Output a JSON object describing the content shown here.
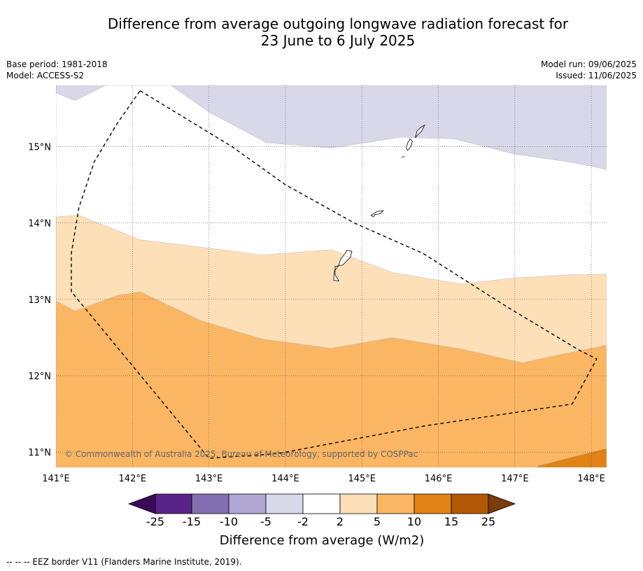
{
  "title_line1": "Difference from average outgoing longwave radiation forecast for",
  "title_line2": "23 June to 6 July 2025",
  "base_period": "Base period: 1981-2018",
  "model": "Model: ACCESS-S2",
  "model_run": "Model run: 09/06/2025",
  "issued": "Issued: 11/06/2025",
  "credit": "© Commonwealth of Australia 2025, Bureau of Meteorology, supported by COSPPac",
  "footnote": "--  --  -- EEZ border V11 (Flanders Marine Institute, 2019).",
  "chart_data": {
    "type": "heatmap",
    "title": "Difference from average outgoing longwave radiation forecast for 23 June to 6 July 2025",
    "xlim": [
      141.0,
      148.2
    ],
    "ylim": [
      10.8,
      15.8
    ],
    "grid": true,
    "x_ticks": [
      {
        "value": 141,
        "label": "141°E"
      },
      {
        "value": 142,
        "label": "142°E"
      },
      {
        "value": 143,
        "label": "143°E"
      },
      {
        "value": 144,
        "label": "144°E"
      },
      {
        "value": 145,
        "label": "145°E"
      },
      {
        "value": 146,
        "label": "146°E"
      },
      {
        "value": 147,
        "label": "147°E"
      },
      {
        "value": 148,
        "label": "148°E"
      }
    ],
    "y_ticks": [
      {
        "value": 11,
        "label": "11°N"
      },
      {
        "value": 12,
        "label": "12°N"
      },
      {
        "value": 13,
        "label": "13°N"
      },
      {
        "value": 14,
        "label": "14°N"
      },
      {
        "value": 15,
        "label": "15°N"
      }
    ],
    "colorbar": {
      "label": "Difference from average (W/m2)",
      "tick_labels": [
        "-25",
        "-15",
        "-10",
        "-5",
        "-2",
        "2",
        "5",
        "10",
        "15",
        "25"
      ],
      "under_color": "#3a0a5a",
      "over_color": "#7a3c0c",
      "colors": [
        "#5a2388",
        "#8270b2",
        "#b0a6d4",
        "#d8d8ea",
        "#ffffff",
        "#fde0b8",
        "#fbb663",
        "#e08214",
        "#b35806"
      ]
    },
    "regions": [
      {
        "category": "-5 to -2",
        "color": "#d8d8ea",
        "polygon": [
          [
            141.0,
            15.7
          ],
          [
            141.25,
            15.6
          ],
          [
            141.65,
            15.8
          ],
          [
            142.5,
            15.8
          ],
          [
            143.0,
            15.45
          ],
          [
            143.75,
            15.05
          ],
          [
            144.6,
            14.98
          ],
          [
            145.5,
            15.12
          ],
          [
            146.2,
            15.1
          ],
          [
            147.0,
            14.9
          ],
          [
            147.7,
            14.8
          ],
          [
            148.2,
            14.7
          ],
          [
            148.2,
            15.8
          ],
          [
            141.0,
            15.8
          ]
        ]
      },
      {
        "category": "2 to 5",
        "color": "#fde0b8",
        "polygon": [
          [
            141.0,
            14.08
          ],
          [
            141.3,
            14.1
          ],
          [
            142.1,
            13.78
          ],
          [
            143.0,
            13.67
          ],
          [
            143.7,
            13.58
          ],
          [
            144.6,
            13.65
          ],
          [
            145.4,
            13.35
          ],
          [
            146.3,
            13.2
          ],
          [
            147.0,
            13.28
          ],
          [
            147.7,
            13.32
          ],
          [
            148.2,
            13.33
          ],
          [
            148.2,
            10.8
          ],
          [
            141.0,
            10.8
          ]
        ]
      },
      {
        "category": "5 to 10",
        "color": "#fbb663",
        "polygon": [
          [
            141.0,
            12.98
          ],
          [
            141.25,
            12.85
          ],
          [
            141.8,
            13.05
          ],
          [
            142.1,
            13.1
          ],
          [
            142.9,
            12.72
          ],
          [
            143.7,
            12.48
          ],
          [
            144.6,
            12.36
          ],
          [
            145.4,
            12.5
          ],
          [
            146.3,
            12.35
          ],
          [
            147.1,
            12.17
          ],
          [
            147.6,
            12.28
          ],
          [
            148.2,
            12.4
          ],
          [
            148.2,
            10.8
          ],
          [
            141.0,
            10.8
          ]
        ]
      },
      {
        "category": "10 to 15",
        "color": "#e08214",
        "polygon": [
          [
            147.3,
            10.8
          ],
          [
            147.3,
            10.82
          ],
          [
            147.8,
            10.95
          ],
          [
            148.2,
            11.05
          ],
          [
            148.2,
            10.8
          ]
        ]
      }
    ],
    "eez_border": [
      [
        142.1,
        15.73
      ],
      [
        143.3,
        15.0
      ],
      [
        144.0,
        14.5
      ],
      [
        144.9,
        14.0
      ],
      [
        145.8,
        13.6
      ],
      [
        146.9,
        12.9
      ],
      [
        147.85,
        12.33
      ],
      [
        148.07,
        12.22
      ],
      [
        147.75,
        11.63
      ],
      [
        145.8,
        11.34
      ],
      [
        143.9,
        10.98
      ],
      [
        143.0,
        10.92
      ],
      [
        141.2,
        13.1
      ],
      [
        141.2,
        13.6
      ],
      [
        141.3,
        14.2
      ],
      [
        141.5,
        14.8
      ],
      [
        141.8,
        15.3
      ],
      [
        142.1,
        15.73
      ]
    ],
    "islands": [
      [
        [
          144.65,
          13.43
        ],
        [
          144.75,
          13.45
        ],
        [
          144.85,
          13.55
        ],
        [
          144.87,
          13.63
        ],
        [
          144.8,
          13.64
        ],
        [
          144.78,
          13.6
        ],
        [
          144.72,
          13.52
        ],
        [
          144.7,
          13.45
        ],
        [
          144.64,
          13.37
        ],
        [
          144.63,
          13.25
        ],
        [
          144.7,
          13.24
        ],
        [
          144.65,
          13.32
        ]
      ],
      [
        [
          145.12,
          14.1
        ],
        [
          145.2,
          14.15
        ],
        [
          145.28,
          14.16
        ],
        [
          145.24,
          14.12
        ],
        [
          145.17,
          14.11
        ],
        [
          145.15,
          14.08
        ]
      ],
      [
        [
          145.6,
          14.95
        ],
        [
          145.64,
          15.0
        ],
        [
          145.66,
          15.07
        ],
        [
          145.63,
          15.1
        ],
        [
          145.6,
          15.05
        ],
        [
          145.58,
          14.98
        ]
      ],
      [
        [
          145.7,
          15.12
        ],
        [
          145.78,
          15.2
        ],
        [
          145.82,
          15.28
        ],
        [
          145.77,
          15.25
        ],
        [
          145.72,
          15.2
        ]
      ],
      [
        [
          145.52,
          14.86
        ],
        [
          145.56,
          14.87
        ]
      ]
    ]
  }
}
